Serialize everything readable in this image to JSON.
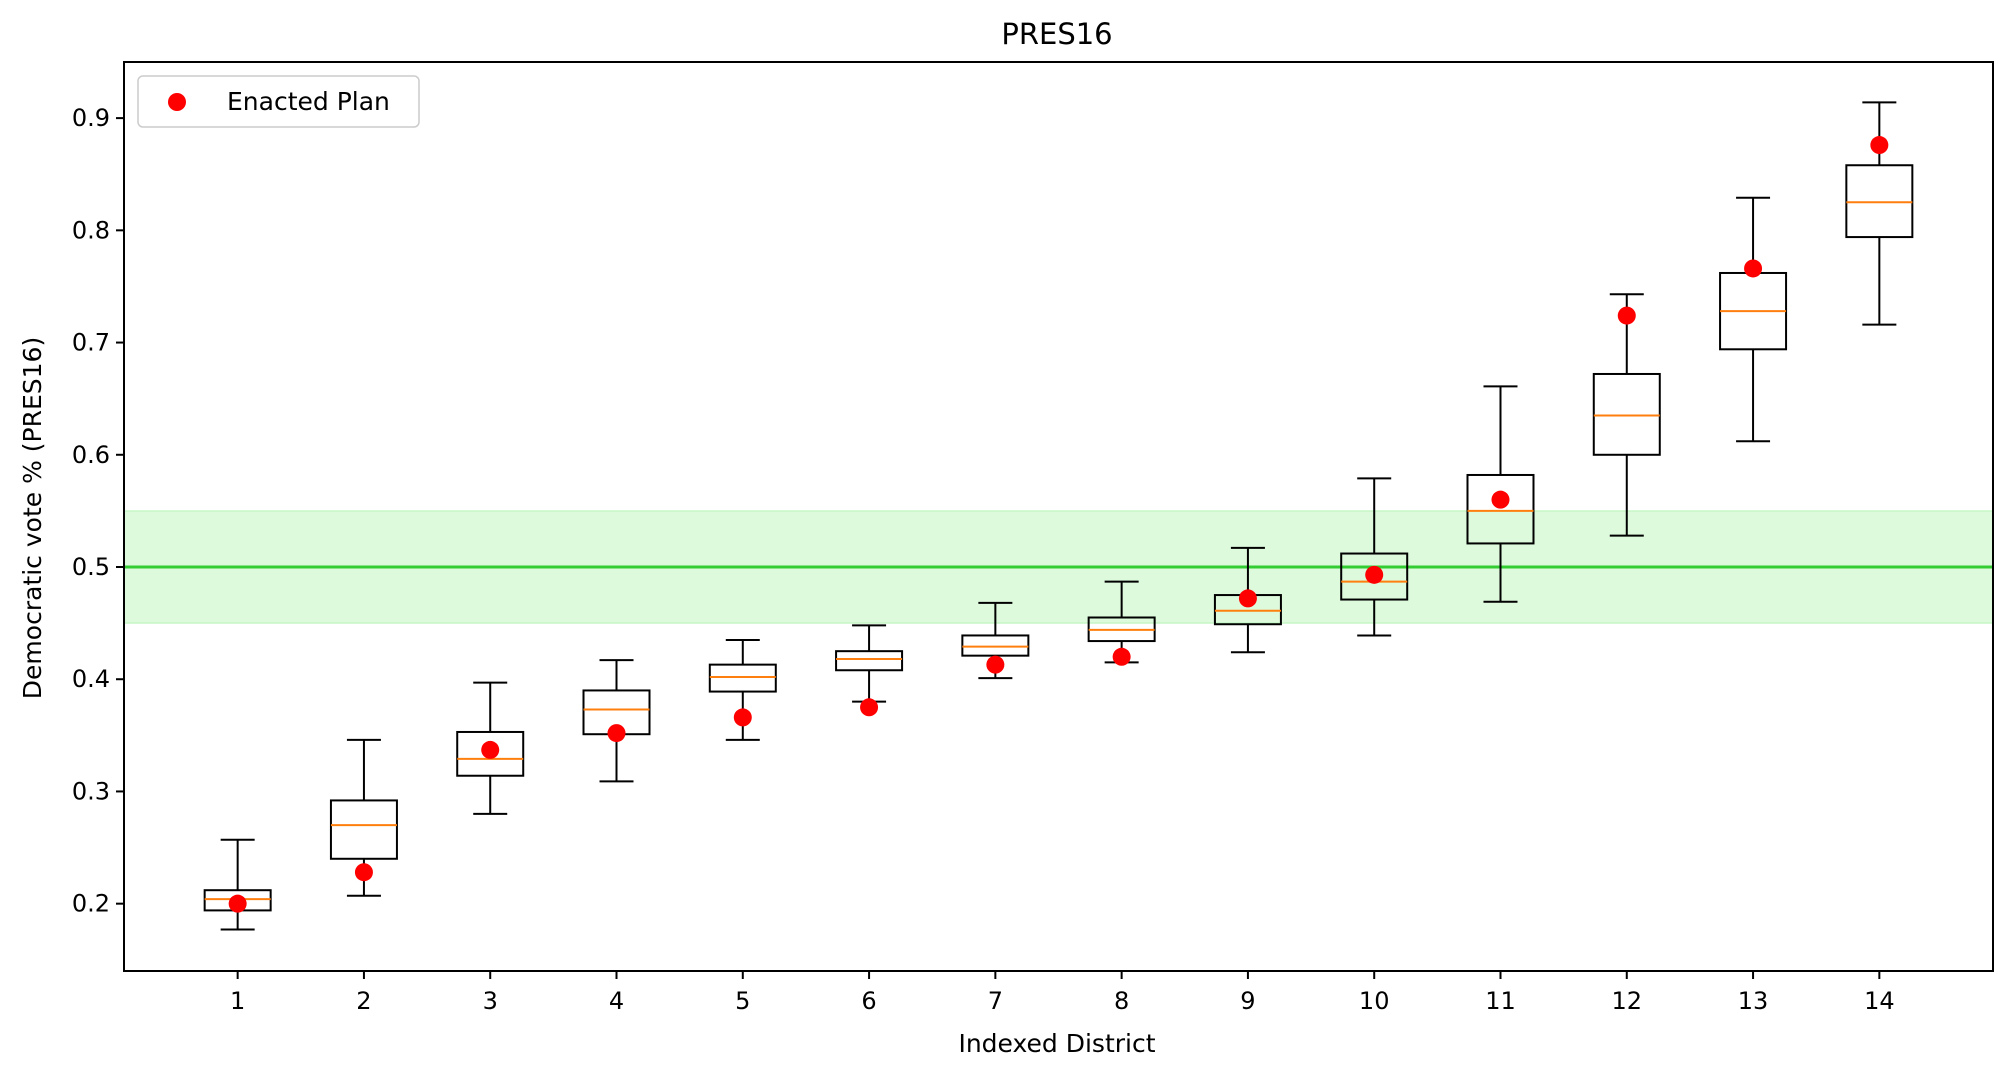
{
  "chart_data": {
    "type": "boxplot",
    "title": "PRES16",
    "xlabel": "Indexed District",
    "ylabel": "Democratic vote % (PRES16)",
    "ylim": [
      0.14,
      0.95
    ],
    "yticks": [
      "0.2",
      "0.3",
      "0.4",
      "0.5",
      "0.6",
      "0.7",
      "0.8",
      "0.9"
    ],
    "categories": [
      "1",
      "2",
      "3",
      "4",
      "5",
      "6",
      "7",
      "8",
      "9",
      "10",
      "11",
      "12",
      "13",
      "14"
    ],
    "boxes": [
      {
        "whislo": 0.177,
        "q1": 0.194,
        "med": 0.204,
        "q3": 0.212,
        "whishi": 0.257
      },
      {
        "whislo": 0.207,
        "q1": 0.24,
        "med": 0.27,
        "q3": 0.292,
        "whishi": 0.346
      },
      {
        "whislo": 0.28,
        "q1": 0.314,
        "med": 0.329,
        "q3": 0.353,
        "whishi": 0.397
      },
      {
        "whislo": 0.309,
        "q1": 0.351,
        "med": 0.373,
        "q3": 0.39,
        "whishi": 0.417
      },
      {
        "whislo": 0.346,
        "q1": 0.389,
        "med": 0.402,
        "q3": 0.413,
        "whishi": 0.435
      },
      {
        "whislo": 0.38,
        "q1": 0.408,
        "med": 0.418,
        "q3": 0.425,
        "whishi": 0.448
      },
      {
        "whislo": 0.401,
        "q1": 0.421,
        "med": 0.429,
        "q3": 0.439,
        "whishi": 0.468
      },
      {
        "whislo": 0.415,
        "q1": 0.434,
        "med": 0.444,
        "q3": 0.455,
        "whishi": 0.487
      },
      {
        "whislo": 0.424,
        "q1": 0.449,
        "med": 0.461,
        "q3": 0.475,
        "whishi": 0.517
      },
      {
        "whislo": 0.439,
        "q1": 0.471,
        "med": 0.487,
        "q3": 0.512,
        "whishi": 0.579
      },
      {
        "whislo": 0.469,
        "q1": 0.521,
        "med": 0.55,
        "q3": 0.582,
        "whishi": 0.661
      },
      {
        "whislo": 0.528,
        "q1": 0.6,
        "med": 0.635,
        "q3": 0.672,
        "whishi": 0.743
      },
      {
        "whislo": 0.612,
        "q1": 0.694,
        "med": 0.728,
        "q3": 0.762,
        "whishi": 0.829
      },
      {
        "whislo": 0.716,
        "q1": 0.794,
        "med": 0.825,
        "q3": 0.858,
        "whishi": 0.914
      }
    ],
    "series": [
      {
        "name": "Enacted Plan",
        "color": "#ff0000",
        "values": [
          0.2,
          0.228,
          0.337,
          0.352,
          0.366,
          0.375,
          0.413,
          0.42,
          0.472,
          0.493,
          0.56,
          0.724,
          0.766,
          0.876
        ]
      }
    ],
    "reference_line": {
      "y": 0.5,
      "color": "#33cc33"
    },
    "reference_band": {
      "y": [
        0.45,
        0.55
      ],
      "color": "#90ee90"
    },
    "median_color": "#ff7f0e",
    "legend_position": "top-left",
    "grid": false
  }
}
